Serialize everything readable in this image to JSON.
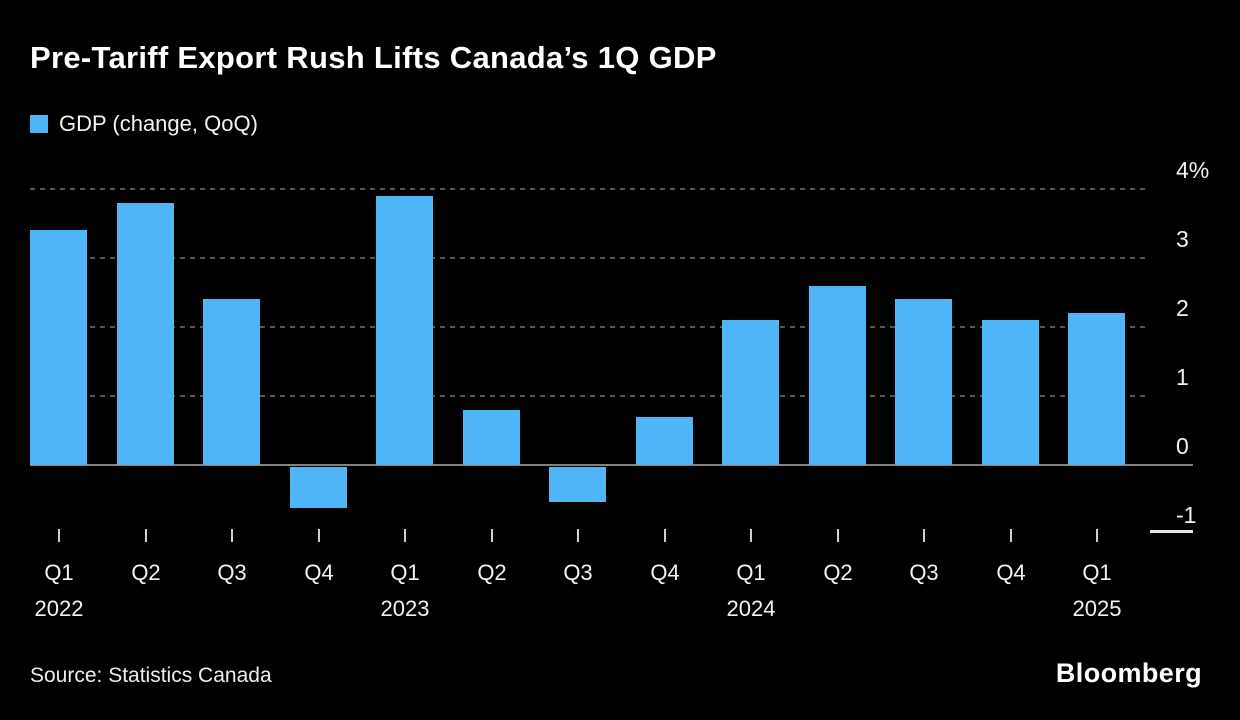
{
  "chart_data": {
    "type": "bar",
    "title": "Pre-Tariff Export Rush Lifts Canada’s 1Q GDP",
    "series_name": "GDP (change, QoQ)",
    "unit": "%",
    "categories": [
      "Q1 2022",
      "Q2 2022",
      "Q3 2022",
      "Q4 2022",
      "Q1 2023",
      "Q2 2023",
      "Q3 2023",
      "Q4 2023",
      "Q1 2024",
      "Q2 2024",
      "Q3 2024",
      "Q4 2024",
      "Q1 2025"
    ],
    "x_tick_labels": [
      "Q1",
      "Q2",
      "Q3",
      "Q4",
      "Q1",
      "Q2",
      "Q3",
      "Q4",
      "Q1",
      "Q2",
      "Q3",
      "Q4",
      "Q1"
    ],
    "x_year_labels": [
      {
        "index": 0,
        "label": "2022"
      },
      {
        "index": 4,
        "label": "2023"
      },
      {
        "index": 8,
        "label": "2024"
      },
      {
        "index": 12,
        "label": "2025"
      }
    ],
    "values": [
      3.4,
      3.8,
      2.4,
      -0.6,
      3.9,
      0.8,
      -0.5,
      0.7,
      2.1,
      2.6,
      2.4,
      2.1,
      2.2
    ],
    "y_ticks": [
      {
        "value": 4,
        "label": "4%"
      },
      {
        "value": 3,
        "label": "3"
      },
      {
        "value": 2,
        "label": "2"
      },
      {
        "value": 1,
        "label": "1"
      },
      {
        "value": 0,
        "label": "0"
      },
      {
        "value": -1,
        "label": "-1"
      }
    ],
    "ylim": [
      -1.1,
      4.45
    ],
    "bar_color": "#4eb5f7",
    "grid": "dashed horizontal, zero baseline solid",
    "legend_position": "top-left",
    "background_color": "#000000"
  },
  "footer": {
    "source_label": "Source: Statistics Canada",
    "brand": "Bloomberg"
  }
}
